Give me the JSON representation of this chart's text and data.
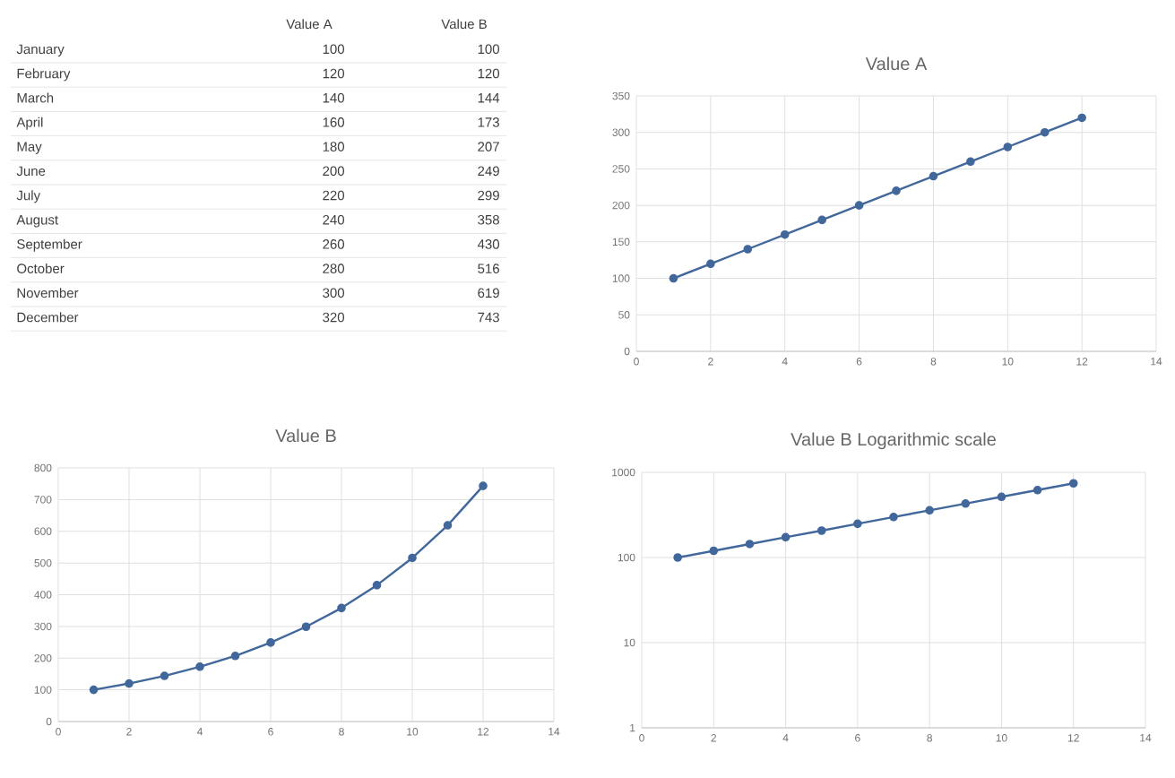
{
  "chart_data": [
    {
      "type": "other",
      "categories": [
        "January",
        "February",
        "March",
        "April",
        "May",
        "June",
        "July",
        "August",
        "September",
        "October",
        "November",
        "December"
      ],
      "series": [
        {
          "name": "Value A",
          "values": [
            100,
            120,
            140,
            160,
            180,
            200,
            220,
            240,
            260,
            280,
            300,
            320
          ]
        },
        {
          "name": "Value B",
          "values": [
            100,
            120,
            144,
            173,
            207,
            249,
            299,
            358,
            430,
            516,
            619,
            743
          ]
        }
      ],
      "data_labels": true
    },
    {
      "type": "line",
      "title": "Value A",
      "x": [
        1,
        2,
        3,
        4,
        5,
        6,
        7,
        8,
        9,
        10,
        11,
        12
      ],
      "values": [
        100,
        120,
        140,
        160,
        180,
        200,
        220,
        240,
        260,
        280,
        300,
        320
      ],
      "color": "#41679b",
      "marker": "circle",
      "grid": true,
      "xlim": [
        0,
        14
      ],
      "xticks": [
        0,
        2,
        4,
        6,
        8,
        10,
        12,
        14
      ],
      "ylim": [
        0,
        350
      ],
      "yticks": [
        0,
        50,
        100,
        150,
        200,
        250,
        300,
        350
      ]
    },
    {
      "type": "line",
      "title": "Value B",
      "x": [
        1,
        2,
        3,
        4,
        5,
        6,
        7,
        8,
        9,
        10,
        11,
        12
      ],
      "values": [
        100,
        120,
        144,
        173,
        207,
        249,
        299,
        358,
        430,
        516,
        619,
        743
      ],
      "color": "#41679b",
      "marker": "circle",
      "grid": true,
      "xlim": [
        0,
        14
      ],
      "xticks": [
        0,
        2,
        4,
        6,
        8,
        10,
        12,
        14
      ],
      "ylim": [
        0,
        800
      ],
      "yticks": [
        0,
        100,
        200,
        300,
        400,
        500,
        600,
        700,
        800
      ]
    },
    {
      "type": "line",
      "title": "Value B Logarithmic scale",
      "x": [
        1,
        2,
        3,
        4,
        5,
        6,
        7,
        8,
        9,
        10,
        11,
        12
      ],
      "values": [
        100,
        120,
        144,
        173,
        207,
        249,
        299,
        358,
        430,
        516,
        619,
        743
      ],
      "color": "#41679b",
      "marker": "circle",
      "grid": true,
      "log": true,
      "xlim": [
        0,
        14
      ],
      "xticks": [
        0,
        2,
        4,
        6,
        8,
        10,
        12,
        14
      ],
      "ylim": [
        1,
        1000
      ],
      "yticks": [
        1,
        10,
        100,
        1000
      ]
    }
  ]
}
